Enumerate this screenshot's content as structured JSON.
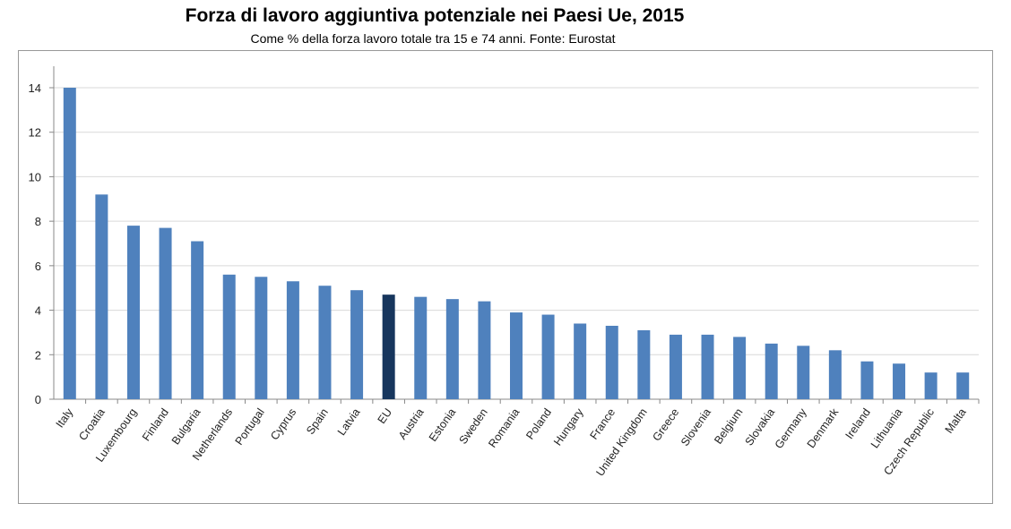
{
  "chart_data": {
    "type": "bar",
    "title": "Forza di lavoro aggiuntiva potenziale nei Paesi Ue, 2015",
    "subtitle": "Come % della forza lavoro totale tra 15 e 74 anni. Fonte: Eurostat",
    "xlabel": "",
    "ylabel": "",
    "ylim": [
      0,
      14
    ],
    "yticks": [
      0,
      2,
      4,
      6,
      8,
      10,
      12,
      14
    ],
    "grid": true,
    "legend": "none",
    "categories": [
      "Italy",
      "Croatia",
      "Luxembourg",
      "Finland",
      "Bulgaria",
      "Netherlands",
      "Portugal",
      "Cyprus",
      "Spain",
      "Latvia",
      "EU",
      "Austria",
      "Estonia",
      "Sweden",
      "Romania",
      "Poland",
      "Hungary",
      "France",
      "United Kingdom",
      "Greece",
      "Slovenia",
      "Belgium",
      "Slovakia",
      "Germany",
      "Denmark",
      "Ireland",
      "Lithuania",
      "Czech Republic",
      "Malta"
    ],
    "values": [
      14.0,
      9.2,
      7.8,
      7.7,
      7.1,
      5.6,
      5.5,
      5.3,
      5.1,
      4.9,
      4.7,
      4.6,
      4.5,
      4.4,
      3.9,
      3.8,
      3.4,
      3.3,
      3.1,
      2.9,
      2.9,
      2.8,
      2.5,
      2.4,
      2.2,
      1.7,
      1.6,
      1.2,
      1.2
    ],
    "colors": {
      "bar": "#4F81BD",
      "highlight": "#17365D",
      "highlight_category": "EU",
      "grid": "#D9D9D9"
    }
  }
}
